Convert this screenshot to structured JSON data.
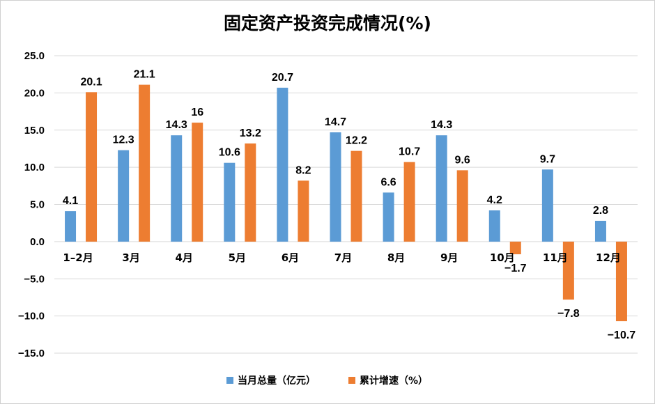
{
  "chart_data": {
    "type": "bar",
    "title": "固定资产投资完成情况(%)",
    "categories": [
      "1–2月",
      "3月",
      "4月",
      "5月",
      "6月",
      "7月",
      "8月",
      "9月",
      "10月",
      "11月",
      "12月"
    ],
    "series": [
      {
        "name": "当月总量（亿元）",
        "color": "#5b9bd5",
        "values": [
          4.1,
          12.3,
          14.3,
          10.6,
          20.7,
          14.7,
          6.6,
          14.3,
          4.2,
          9.7,
          2.8
        ]
      },
      {
        "name": "累计增速（%）",
        "color": "#ed7d31",
        "values": [
          20.1,
          21.1,
          16,
          13.2,
          8.2,
          12.2,
          10.7,
          9.6,
          -1.7,
          -7.8,
          -10.7
        ]
      }
    ],
    "value_labels": [
      [
        "4.1",
        "12.3",
        "14.3",
        "10.6",
        "20.7",
        "14.7",
        "6.6",
        "14.3",
        "4.2",
        "9.7",
        "2.8"
      ],
      [
        "20.1",
        "21.1",
        "16",
        "13.2",
        "8.2",
        "12.2",
        "10.7",
        "9.6",
        "−1.7",
        "−7.8",
        "−10.7"
      ]
    ],
    "yticks": [
      25,
      20,
      15,
      10,
      5,
      0,
      -5,
      -10,
      -15
    ],
    "ytick_labels": [
      "25.0",
      "20.0",
      "15.0",
      "10.0",
      "5.0",
      "0.0",
      "−5.0",
      "−10.0",
      "−15.0"
    ],
    "ylim": [
      -15,
      25
    ],
    "grid": true,
    "legend_position": "bottom"
  }
}
